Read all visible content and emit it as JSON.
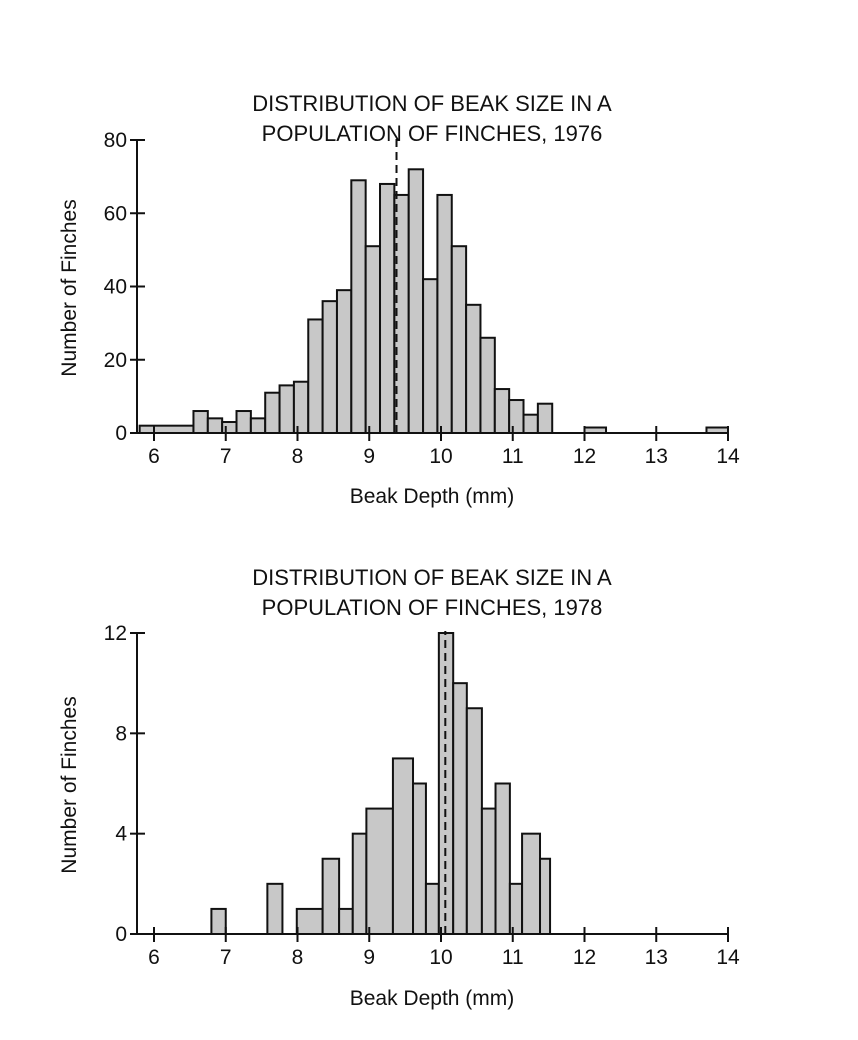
{
  "chart_data": [
    {
      "type": "bar",
      "title": [
        "DISTRIBUTION OF BEAK SIZE IN A",
        "POPULATION OF FINCHES, 1976"
      ],
      "xlabel": "Beak Depth (mm)",
      "ylabel": "Number of Finches",
      "xlim": [
        5.8,
        14
      ],
      "ylim": [
        0,
        80
      ],
      "xticks": [
        6,
        7,
        8,
        9,
        10,
        11,
        12,
        13,
        14
      ],
      "yticks": [
        0,
        20,
        40,
        60,
        80
      ],
      "mean_line": 9.38,
      "grid": false,
      "bar_color": "#c8c8c8",
      "bins": [
        [
          5.8,
          6.55,
          2
        ],
        [
          6.55,
          6.75,
          6
        ],
        [
          6.75,
          6.95,
          4
        ],
        [
          6.95,
          7.15,
          3
        ],
        [
          7.15,
          7.35,
          6
        ],
        [
          7.35,
          7.55,
          4
        ],
        [
          7.55,
          7.75,
          11
        ],
        [
          7.75,
          7.95,
          13
        ],
        [
          7.95,
          8.15,
          14
        ],
        [
          8.15,
          8.35,
          31
        ],
        [
          8.35,
          8.55,
          36
        ],
        [
          8.55,
          8.75,
          39
        ],
        [
          8.75,
          8.95,
          69
        ],
        [
          8.95,
          9.15,
          51
        ],
        [
          9.15,
          9.35,
          68
        ],
        [
          9.35,
          9.55,
          65
        ],
        [
          9.55,
          9.75,
          72
        ],
        [
          9.75,
          9.95,
          42
        ],
        [
          9.95,
          10.15,
          65
        ],
        [
          10.15,
          10.35,
          51
        ],
        [
          10.35,
          10.55,
          35
        ],
        [
          10.55,
          10.75,
          26
        ],
        [
          10.75,
          10.95,
          12
        ],
        [
          10.95,
          11.15,
          9
        ],
        [
          11.15,
          11.35,
          5
        ],
        [
          11.35,
          11.55,
          8
        ],
        [
          12.0,
          12.3,
          1.5
        ],
        [
          13.7,
          14.0,
          1.5
        ]
      ]
    },
    {
      "type": "bar",
      "title": [
        "DISTRIBUTION OF BEAK SIZE IN A",
        "POPULATION OF FINCHES, 1978"
      ],
      "xlabel": "Beak Depth (mm)",
      "ylabel": "Number of Finches",
      "xlim": [
        5.8,
        14
      ],
      "ylim": [
        0,
        12
      ],
      "xticks": [
        6,
        7,
        8,
        9,
        10,
        11,
        12,
        13,
        14
      ],
      "yticks": [
        0,
        4,
        8,
        12
      ],
      "mean_line": 10.06,
      "grid": false,
      "bar_color": "#c8c8c8",
      "bins": [
        [
          6.8,
          7.0,
          1
        ],
        [
          7.58,
          7.79,
          2
        ],
        [
          7.99,
          8.35,
          1
        ],
        [
          8.35,
          8.58,
          3
        ],
        [
          8.58,
          8.77,
          1
        ],
        [
          8.77,
          8.96,
          4
        ],
        [
          8.96,
          9.33,
          5
        ],
        [
          9.33,
          9.61,
          7
        ],
        [
          9.61,
          9.79,
          6
        ],
        [
          9.79,
          9.97,
          2
        ],
        [
          9.97,
          10.17,
          12
        ],
        [
          10.17,
          10.36,
          10
        ],
        [
          10.36,
          10.57,
          9
        ],
        [
          10.57,
          10.76,
          5
        ],
        [
          10.76,
          10.96,
          6
        ],
        [
          10.96,
          11.13,
          2
        ],
        [
          11.13,
          11.38,
          4
        ],
        [
          11.38,
          11.52,
          3
        ]
      ]
    }
  ]
}
